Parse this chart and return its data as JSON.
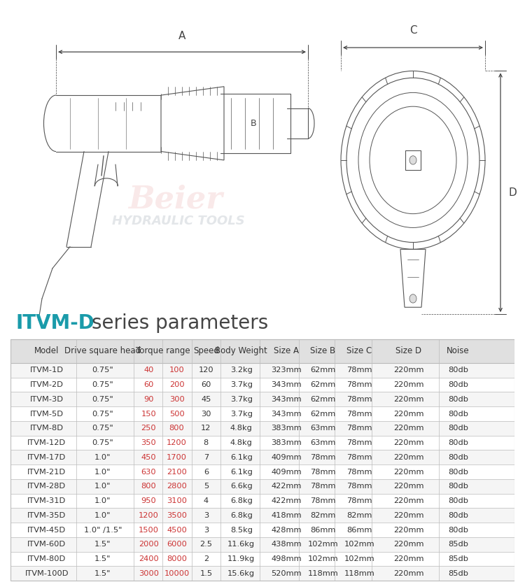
{
  "title_part1": "ITVM-D",
  "title_part2": "series parameters",
  "title_color1": "#1a9baa",
  "title_color2": "#444444",
  "title_fontsize": 20,
  "header_bg": "#e0e0e0",
  "row_bg_even": "#f5f5f5",
  "row_bg_odd": "#ffffff",
  "border_color": "#bbbbbb",
  "text_color": "#333333",
  "header_fontsize": 8.5,
  "cell_fontsize": 8.2,
  "rows": [
    [
      "ITVM-1D",
      "0.75\"",
      "40",
      "100",
      "120",
      "3.2kg",
      "323mm",
      "62mm",
      "78mm",
      "220mm",
      "80db"
    ],
    [
      "ITVM-2D",
      "0.75\"",
      "60",
      "200",
      "60",
      "3.7kg",
      "343mm",
      "62mm",
      "78mm",
      "220mm",
      "80db"
    ],
    [
      "ITVM-3D",
      "0.75\"",
      "90",
      "300",
      "45",
      "3.7kg",
      "343mm",
      "62mm",
      "78mm",
      "220mm",
      "80db"
    ],
    [
      "ITVM-5D",
      "0.75\"",
      "150",
      "500",
      "30",
      "3.7kg",
      "343mm",
      "62mm",
      "78mm",
      "220mm",
      "80db"
    ],
    [
      "ITVM-8D",
      "0.75\"",
      "250",
      "800",
      "12",
      "4.8kg",
      "383mm",
      "63mm",
      "78mm",
      "220mm",
      "80db"
    ],
    [
      "ITVM-12D",
      "0.75\"",
      "350",
      "1200",
      "8",
      "4.8kg",
      "383mm",
      "63mm",
      "78mm",
      "220mm",
      "80db"
    ],
    [
      "ITVM-17D",
      "1.0\"",
      "450",
      "1700",
      "7",
      "6.1kg",
      "409mm",
      "78mm",
      "78mm",
      "220mm",
      "80db"
    ],
    [
      "ITVM-21D",
      "1.0\"",
      "630",
      "2100",
      "6",
      "6.1kg",
      "409mm",
      "78mm",
      "78mm",
      "220mm",
      "80db"
    ],
    [
      "ITVM-28D",
      "1.0\"",
      "800",
      "2800",
      "5",
      "6.6kg",
      "422mm",
      "78mm",
      "78mm",
      "220mm",
      "80db"
    ],
    [
      "ITVM-31D",
      "1.0\"",
      "950",
      "3100",
      "4",
      "6.8kg",
      "422mm",
      "78mm",
      "78mm",
      "220mm",
      "80db"
    ],
    [
      "ITVM-35D",
      "1.0\"",
      "1200",
      "3500",
      "3",
      "6.8kg",
      "418mm",
      "82mm",
      "82mm",
      "220mm",
      "80db"
    ],
    [
      "ITVM-45D",
      "1.0\" /1.5\"",
      "1500",
      "4500",
      "3",
      "8.5kg",
      "428mm",
      "86mm",
      "86mm",
      "220mm",
      "80db"
    ],
    [
      "ITVM-60D",
      "1.5\"",
      "2000",
      "6000",
      "2.5",
      "11.6kg",
      "438mm",
      "102mm",
      "102mm",
      "220mm",
      "85db"
    ],
    [
      "ITVM-80D",
      "1.5\"",
      "2400",
      "8000",
      "2",
      "11.9kg",
      "498mm",
      "102mm",
      "102mm",
      "220mm",
      "85db"
    ],
    [
      "ITVM-100D",
      "1.5\"",
      "3000",
      "10000",
      "1.5",
      "15.6kg",
      "520mm",
      "118mm",
      "118mm",
      "220mm",
      "85db"
    ]
  ],
  "red_color": "#cc3333",
  "line_color": "#555555",
  "dim_color": "#444444",
  "watermark_red": "#e8a8a8",
  "watermark_gray": "#b0b8c0"
}
